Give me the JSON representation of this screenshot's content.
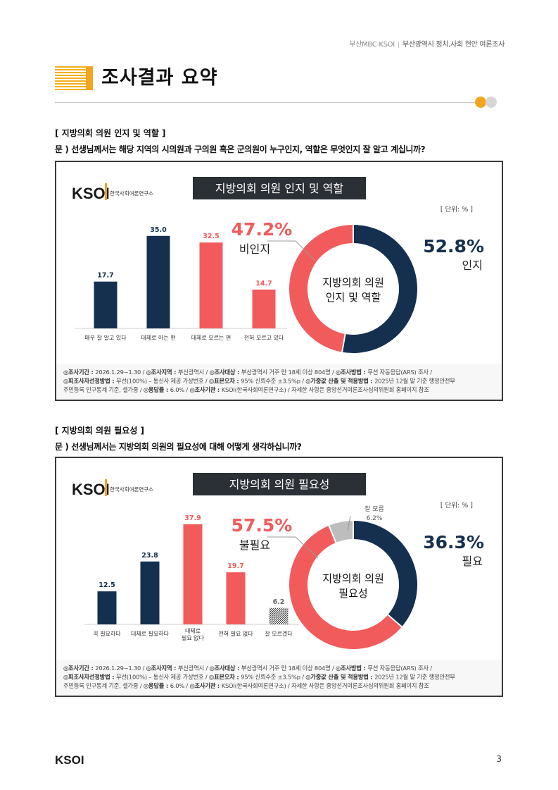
{
  "header": {
    "org": "부산MBC·KSOI",
    "separator": "|",
    "title": "부산광역시 정치,사회 현안 여론조사"
  },
  "page_title": "조사결과 요약",
  "sections": [
    {
      "label": "[ 지방의회 의원 인지 및 역할 ]",
      "question": "문 ) 선생님께서는 해당 지역의 시의원과 구의원 혹은 군의원이 누구인지, 역할은 무엇인지 잘 알고 계십니까?"
    },
    {
      "label": "[ 지방의회 의원 필요성 ]",
      "question": "문 ) 선생님께서는 지방의회 의원의 필요성에 대해 어떻게 생각하십니까?"
    }
  ],
  "colors": {
    "navy": "#15304f",
    "red": "#f25b5b",
    "gray": "#bdbdbd",
    "accent": "#f4a41f",
    "title_bg": "#2b2f36"
  },
  "chart_data": [
    {
      "type": "bar+donut",
      "logo": "KSOI",
      "logo_sub": "한국사회여론연구소",
      "title": "지방의회 의원 인지 및 역할",
      "unit": "[ 단위: % ]",
      "categories": [
        "매우 잘 알고 있다",
        "대체로 아는 편",
        "대체로 모르는 편",
        "전혀 모르고 있다"
      ],
      "values": [
        17.7,
        35.0,
        32.5,
        14.7
      ],
      "value_labels": [
        "17.7",
        "35.0",
        "32.5",
        "14.7"
      ],
      "bar_colors": [
        "navy",
        "navy",
        "red",
        "red"
      ],
      "ylim": [
        0,
        40
      ],
      "donut": {
        "center_lines": [
          "지방의회 의원",
          "인지 및 역할"
        ],
        "segments": [
          {
            "name": "인지",
            "value": 52.8,
            "label": "52.8%",
            "color": "navy"
          },
          {
            "name": "비인지",
            "value": 47.2,
            "label": "47.2%",
            "color": "red"
          }
        ]
      },
      "footnotes": [
        [
          [
            "◎조사기간 : ",
            true
          ],
          [
            "2026.1.29~1.30 / ",
            false
          ],
          [
            "◎조사지역 : ",
            true
          ],
          [
            "부산광역시 / ",
            false
          ],
          [
            "◎조사대상 : ",
            true
          ],
          [
            "부산광역시 거주 만 18세 이상 804명 / ",
            false
          ],
          [
            "◎조사방법 : ",
            true
          ],
          [
            "무선 자동응답(ARS) 조사 /",
            false
          ]
        ],
        [
          [
            "◎피조사자선정방법 : ",
            true
          ],
          [
            "무선(100%) – 통신사 제공 가상번호 / ",
            false
          ],
          [
            "◎표본오차 : ",
            true
          ],
          [
            "95% 신뢰수준 ±3.5%p / ",
            false
          ],
          [
            "◎가중값 산출 및 적용방법 : ",
            true
          ],
          [
            "2025년 12월 말 기준 행정안전부",
            false
          ]
        ],
        [
          [
            "주민등록 인구통계 기준, 셀가중 / ",
            false
          ],
          [
            "◎응답률 : ",
            true
          ],
          [
            "6.0% / ",
            false
          ],
          [
            "◎조사기관 : ",
            true
          ],
          [
            "KSOI(한국사회여론연구소) / ",
            false
          ],
          [
            "자세한 사항은 중앙선거여론조사심의위원회 홈페이지 참조",
            false
          ]
        ]
      ]
    },
    {
      "type": "bar+donut",
      "logo": "KSOI",
      "logo_sub": "한국사회여론연구소",
      "title": "지방의회 의원 필요성",
      "unit": "[ 단위: % ]",
      "categories": [
        "꼭 필요하다",
        "대체로 필요하다",
        "대체로\n필요 없다",
        "전혀 필요 없다",
        "잘 모르겠다"
      ],
      "values": [
        12.5,
        23.8,
        37.9,
        19.7,
        6.2
      ],
      "value_labels": [
        "12.5",
        "23.8",
        "37.9",
        "19.7",
        "6.2"
      ],
      "bar_colors": [
        "navy",
        "navy",
        "red",
        "red",
        "hatch"
      ],
      "ylim": [
        0,
        40
      ],
      "donut": {
        "center_lines": [
          "지방의회 의원",
          "필요성"
        ],
        "segments": [
          {
            "name": "필요",
            "value": 36.3,
            "label": "36.3%",
            "color": "navy"
          },
          {
            "name": "불필요",
            "value": 57.5,
            "label": "57.5%",
            "color": "red"
          },
          {
            "name": "잘 모름",
            "value": 6.2,
            "label": "6.2%",
            "color": "gray"
          }
        ]
      },
      "footnotes": [
        [
          [
            "◎조사기간 : ",
            true
          ],
          [
            "2026.1.29~1.30 / ",
            false
          ],
          [
            "◎조사지역 : ",
            true
          ],
          [
            "부산광역시 / ",
            false
          ],
          [
            "◎조사대상 : ",
            true
          ],
          [
            "부산광역시 거주 만 18세 이상 804명 / ",
            false
          ],
          [
            "◎조사방법 : ",
            true
          ],
          [
            "무선 자동응답(ARS) 조사 /",
            false
          ]
        ],
        [
          [
            "◎피조사자선정방법 : ",
            true
          ],
          [
            "무선(100%) – 통신사 제공 가상번호 / ",
            false
          ],
          [
            "◎표본오차 : ",
            true
          ],
          [
            "95% 신뢰수준 ±3.5%p / ",
            false
          ],
          [
            "◎가중값 산출 및 적용방법 : ",
            true
          ],
          [
            "2025년 12월 말 기준 행정안전부",
            false
          ]
        ],
        [
          [
            "주민등록 인구통계 기준, 셀가중 / ",
            false
          ],
          [
            "◎응답률 : ",
            true
          ],
          [
            "6.0% / ",
            false
          ],
          [
            "◎조사기관 : ",
            true
          ],
          [
            "KSOI(한국사회여론연구소) / ",
            false
          ],
          [
            "자세한 사항은 중앙선거여론조사심의위원회 홈페이지 참조",
            false
          ]
        ]
      ]
    }
  ],
  "footer": {
    "logo": "KSOI",
    "page": "3"
  }
}
